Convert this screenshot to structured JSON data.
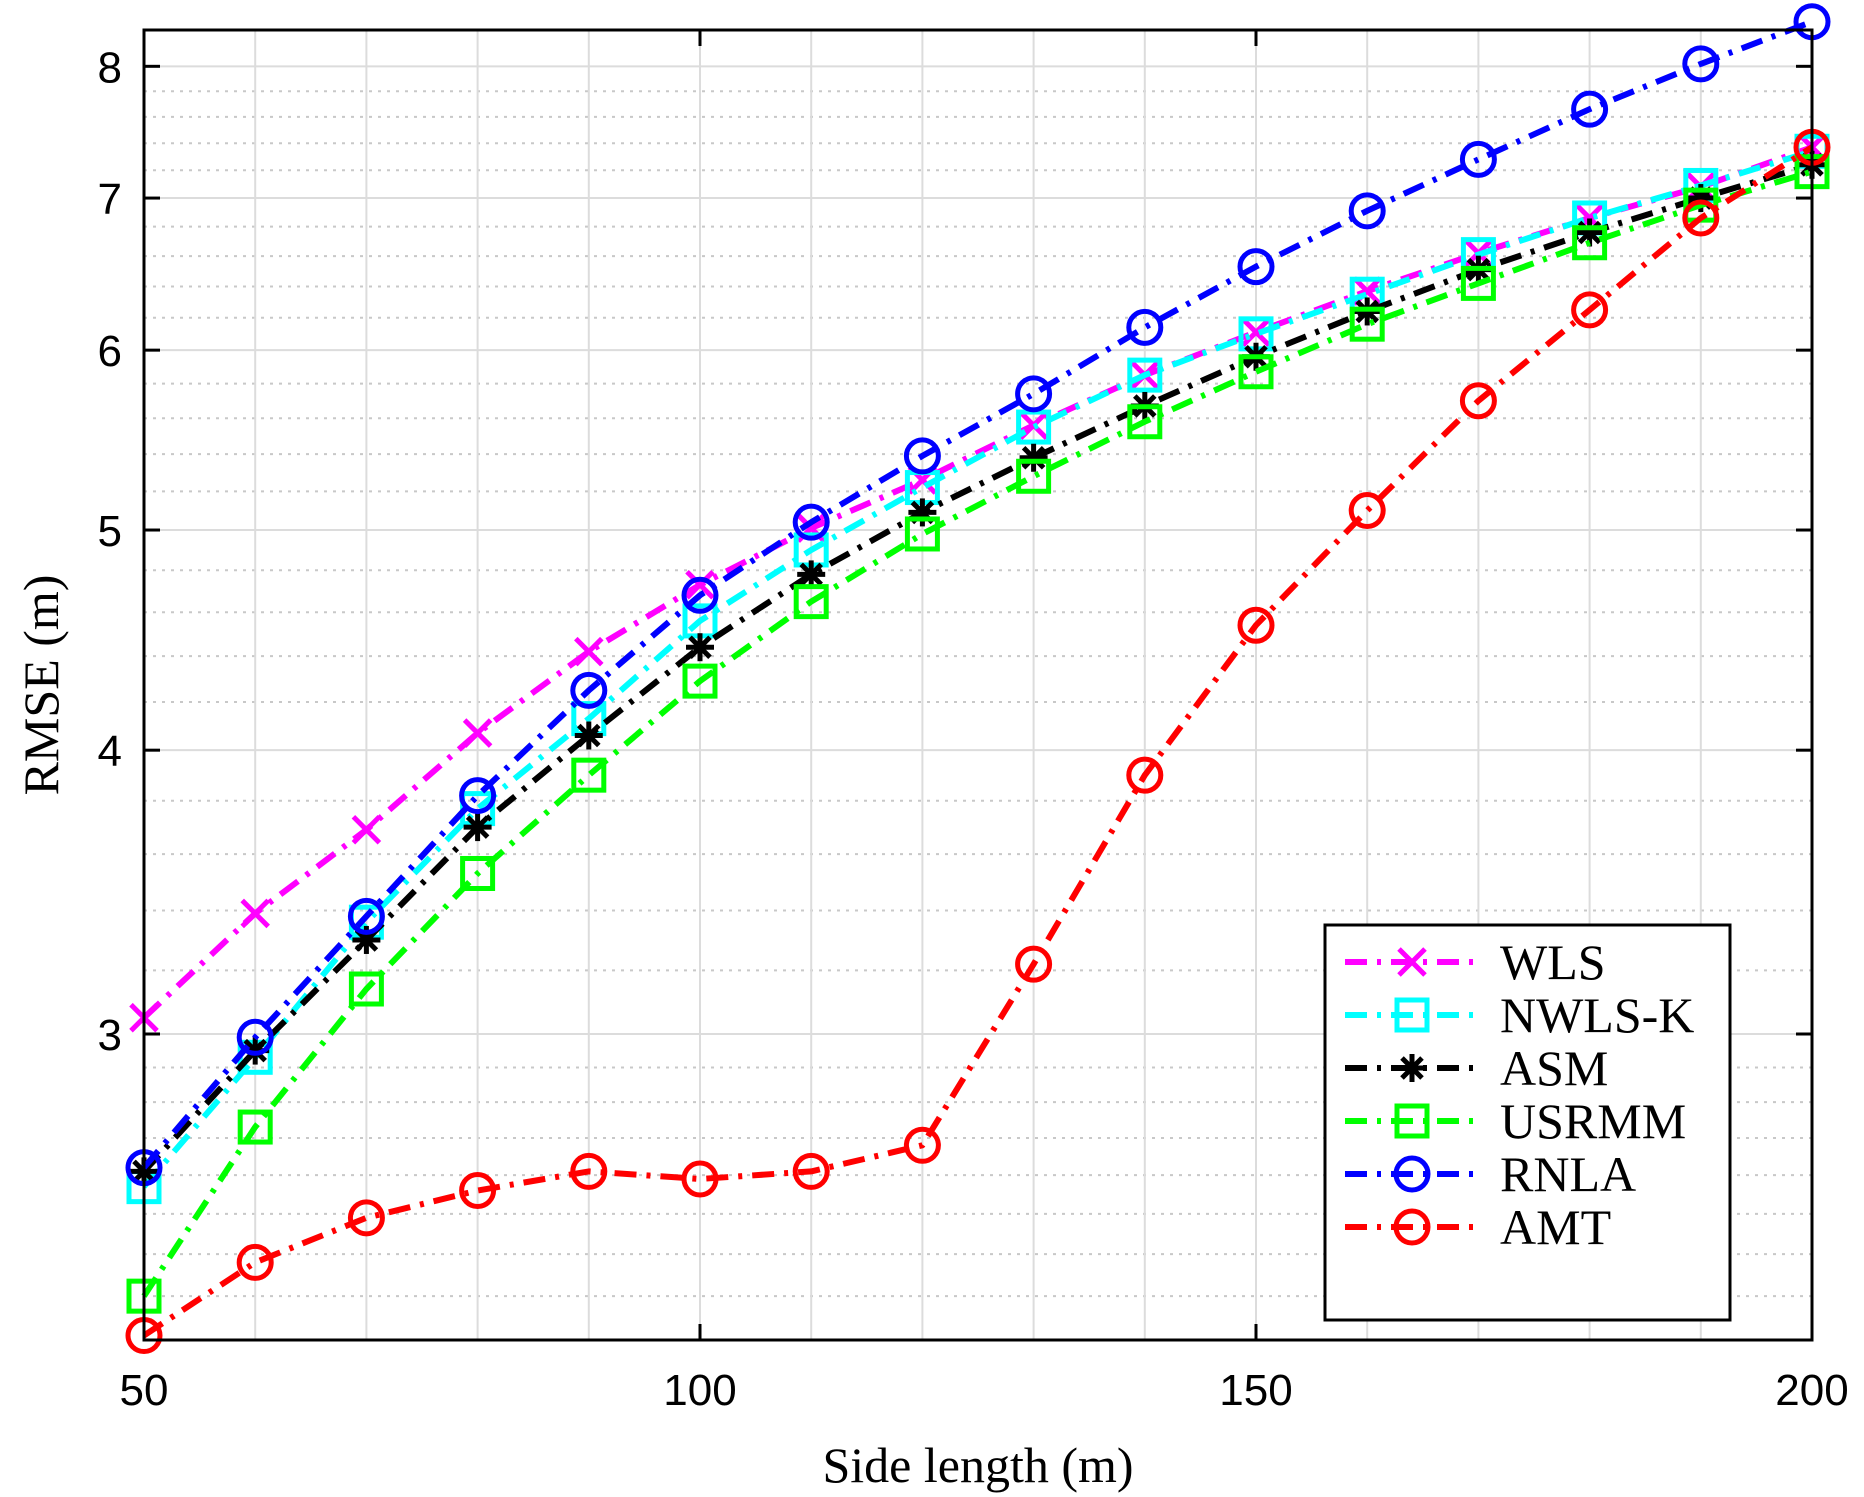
{
  "chart_data": {
    "type": "line",
    "title": "",
    "xlabel": "Side length (m)",
    "ylabel": "RMSE (m)",
    "xlim": [
      50,
      200
    ],
    "ylim": [
      2.2,
      8.3
    ],
    "yscale": "log",
    "grid": true,
    "minor_grid": true,
    "legend_position": "bottom-right",
    "x": [
      50,
      60,
      70,
      80,
      90,
      100,
      110,
      120,
      130,
      140,
      150,
      160,
      170,
      180,
      190,
      200
    ],
    "x_ticks": [
      50,
      100,
      150,
      200
    ],
    "x_tick_labels": [
      "50",
      "100",
      "150",
      "200"
    ],
    "y_ticks": [
      3,
      4,
      5,
      6,
      7,
      8
    ],
    "y_tick_labels": [
      "3",
      "4",
      "5",
      "6",
      "7",
      "8"
    ],
    "y_minor_ticks": [
      2.3,
      2.4,
      2.5,
      2.6,
      2.7,
      2.8,
      2.9,
      3.2,
      3.4,
      3.6,
      3.8,
      4.2,
      4.4,
      4.6,
      4.8,
      5.2,
      5.4,
      5.6,
      5.8,
      6.2,
      6.4,
      6.6,
      6.8,
      7.2,
      7.4,
      7.6,
      7.8
    ],
    "series": [
      {
        "name": "WLS",
        "color": "#ff00ff",
        "marker": "x",
        "values": [
          3.05,
          3.39,
          3.69,
          4.07,
          4.42,
          4.73,
          5.01,
          5.26,
          5.56,
          5.85,
          6.11,
          6.37,
          6.62,
          6.86,
          7.08,
          7.37
        ]
      },
      {
        "name": "NWLS-K",
        "color": "#00ffff",
        "marker": "square",
        "values": [
          2.57,
          2.93,
          3.36,
          3.77,
          4.13,
          4.56,
          4.9,
          5.22,
          5.55,
          5.85,
          6.1,
          6.35,
          6.61,
          6.86,
          7.09,
          7.34
        ]
      },
      {
        "name": "ASM",
        "color": "#000000",
        "marker": "asterisk",
        "values": [
          2.61,
          2.95,
          3.3,
          3.7,
          4.06,
          4.44,
          4.78,
          5.09,
          5.38,
          5.67,
          5.96,
          6.24,
          6.51,
          6.76,
          7.0,
          7.24
        ]
      },
      {
        "name": "USRMM",
        "color": "#00ff00",
        "marker": "square",
        "values": [
          2.3,
          2.73,
          3.14,
          3.53,
          3.9,
          4.29,
          4.65,
          4.98,
          5.28,
          5.58,
          5.87,
          6.16,
          6.42,
          6.69,
          6.95,
          7.19
        ]
      },
      {
        "name": "RNLA",
        "color": "#0000ff",
        "marker": "circle",
        "values": [
          2.62,
          2.99,
          3.38,
          3.82,
          4.25,
          4.68,
          5.04,
          5.39,
          5.74,
          6.14,
          6.53,
          6.91,
          7.28,
          7.66,
          8.02,
          8.37
        ]
      },
      {
        "name": "AMT",
        "color": "#ff0000",
        "marker": "circle",
        "values": [
          2.21,
          2.38,
          2.49,
          2.56,
          2.61,
          2.59,
          2.61,
          2.68,
          3.22,
          3.9,
          4.54,
          5.1,
          5.7,
          6.25,
          6.86,
          7.37
        ]
      }
    ]
  }
}
